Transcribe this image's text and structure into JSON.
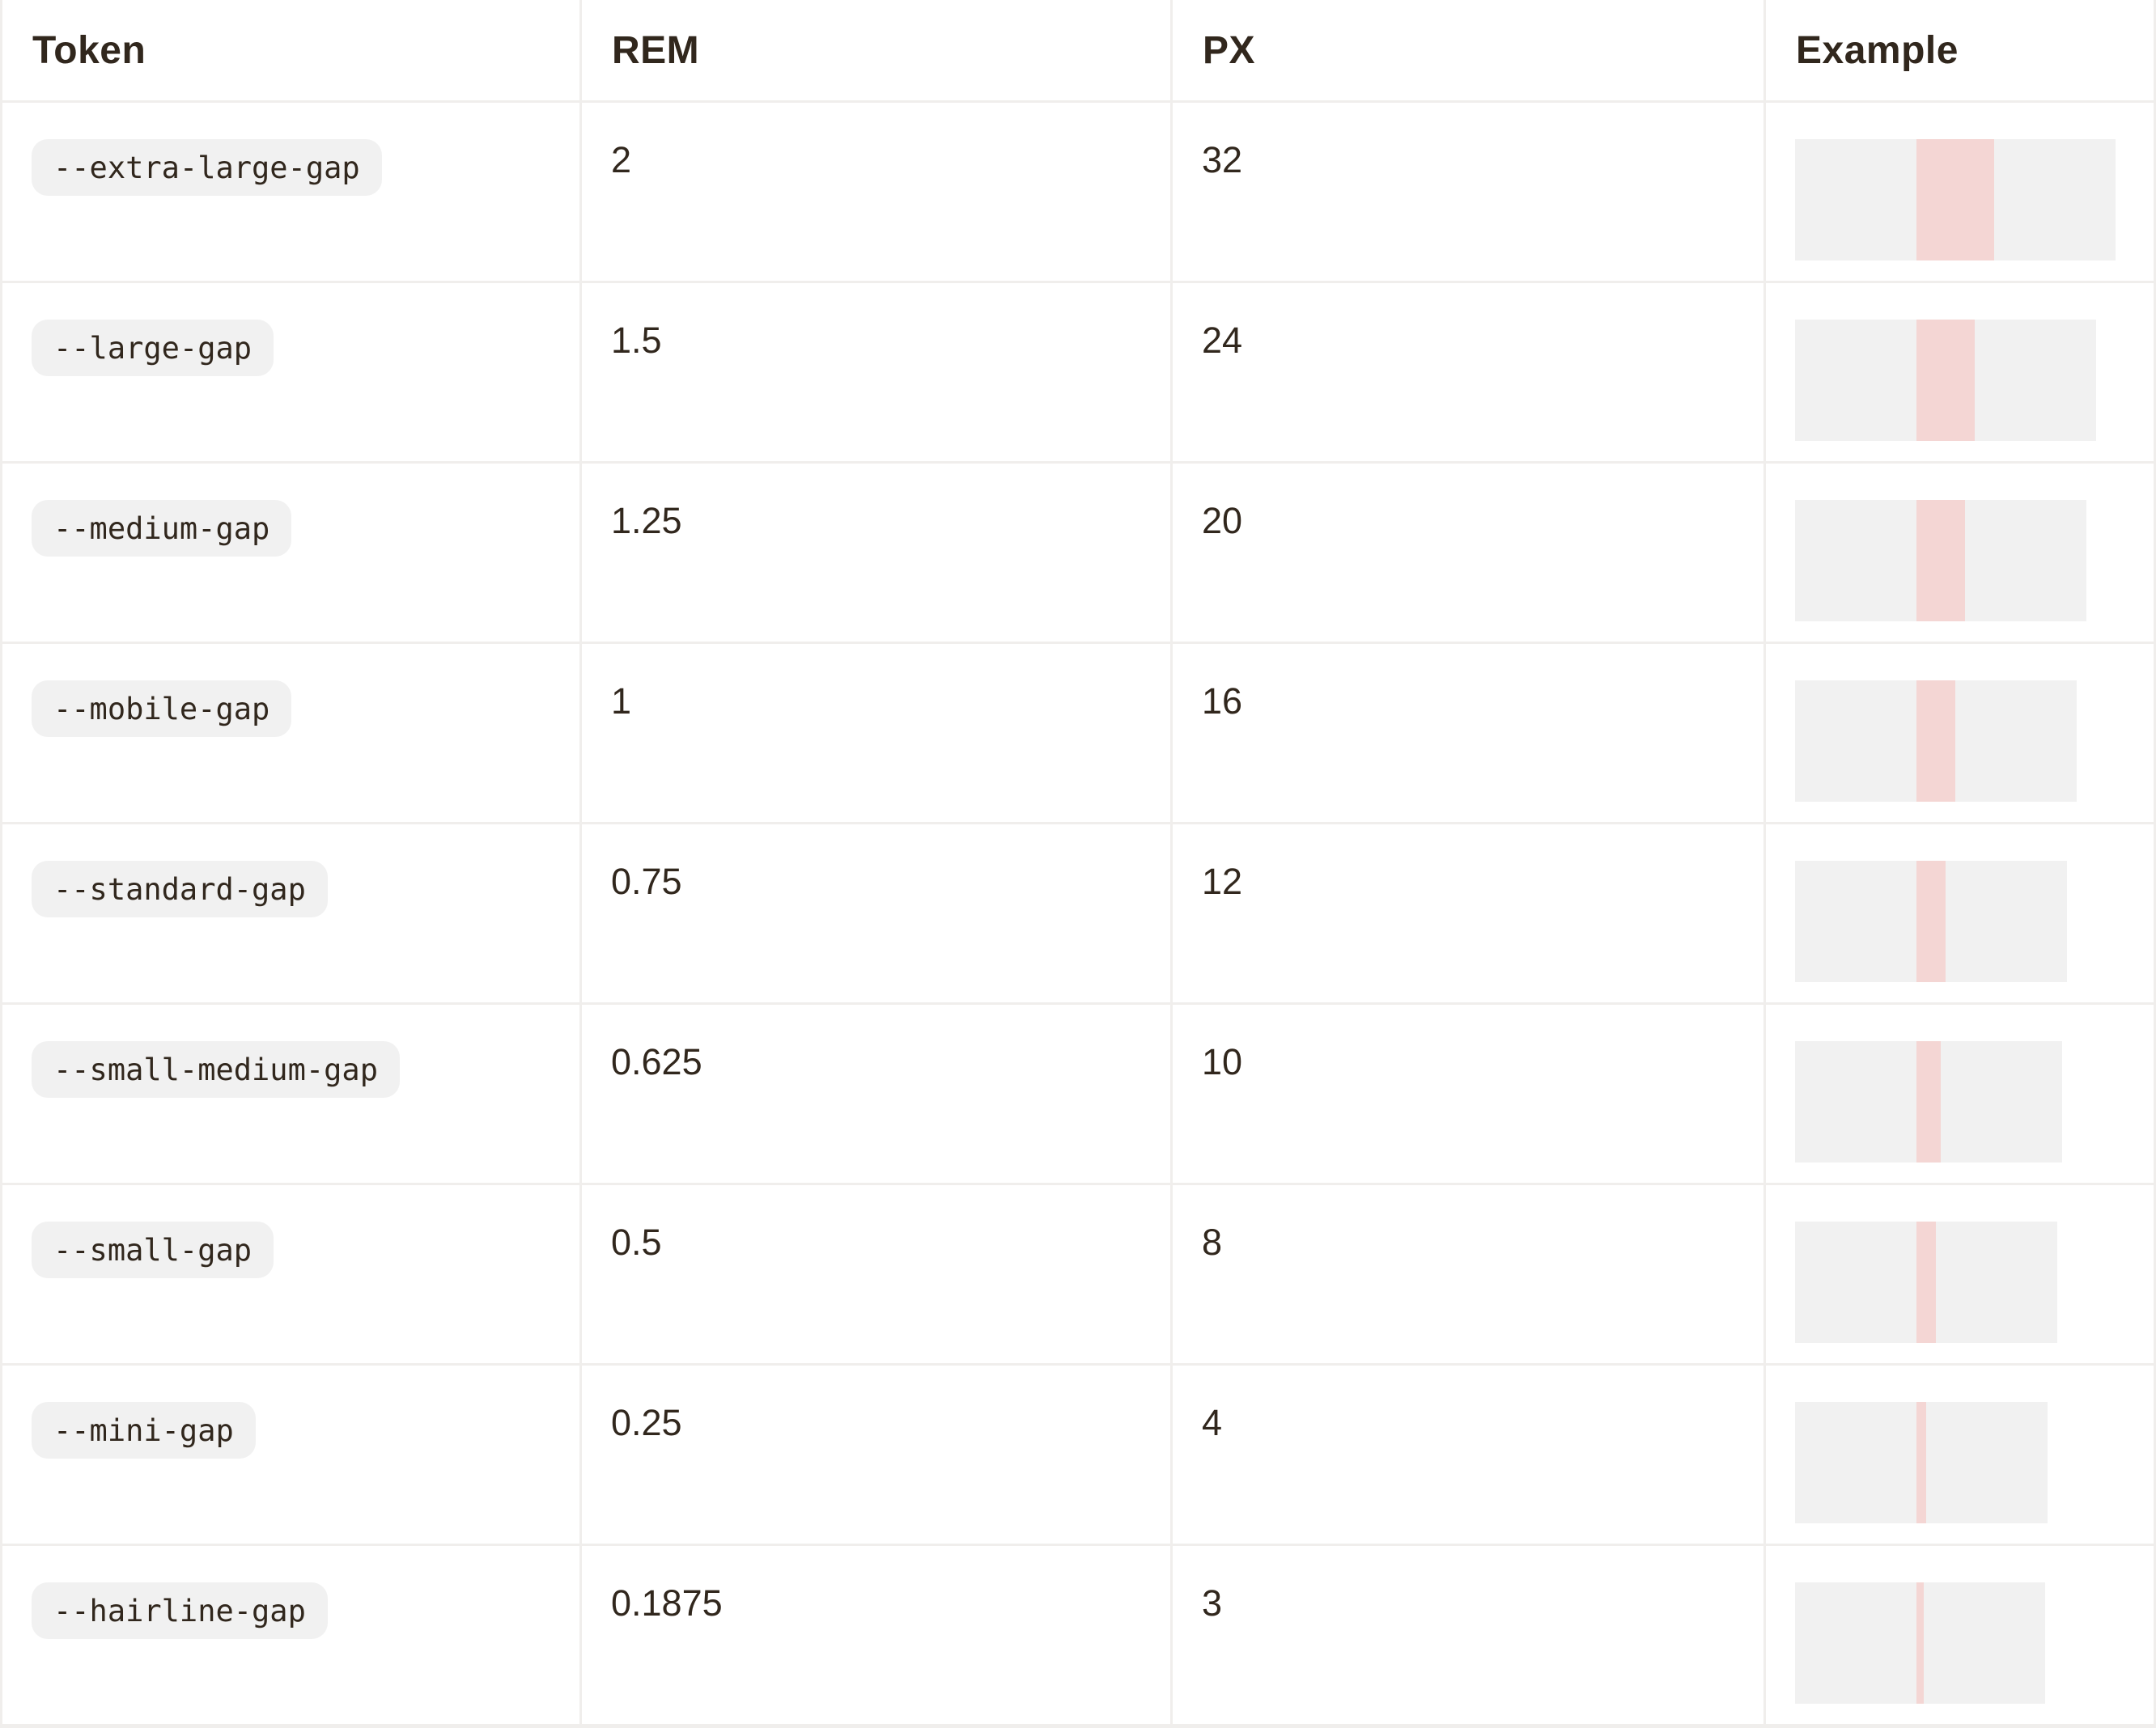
{
  "theme": {
    "text_color": "#31271d",
    "border_color": "#f0eeec",
    "box_gray": "#f1f1f1",
    "pill_background": "#f1f1f1",
    "accent_pink": "#f4d6d4"
  },
  "table": {
    "columns": {
      "token": "Token",
      "rem": "REM",
      "px": "PX",
      "example": "Example"
    },
    "rows": [
      {
        "token": "--extra-large-gap",
        "rem": "2",
        "px": "32"
      },
      {
        "token": "--large-gap",
        "rem": "1.5",
        "px": "24"
      },
      {
        "token": "--medium-gap",
        "rem": "1.25",
        "px": "20"
      },
      {
        "token": "--mobile-gap",
        "rem": "1",
        "px": "16"
      },
      {
        "token": "--standard-gap",
        "rem": "0.75",
        "px": "12"
      },
      {
        "token": "--small-medium-gap",
        "rem": "0.625",
        "px": "10"
      },
      {
        "token": "--small-gap",
        "rem": "0.5",
        "px": "8"
      },
      {
        "token": "--mini-gap",
        "rem": "0.25",
        "px": "4"
      },
      {
        "token": "--hairline-gap",
        "rem": "0.1875",
        "px": "3"
      }
    ]
  }
}
